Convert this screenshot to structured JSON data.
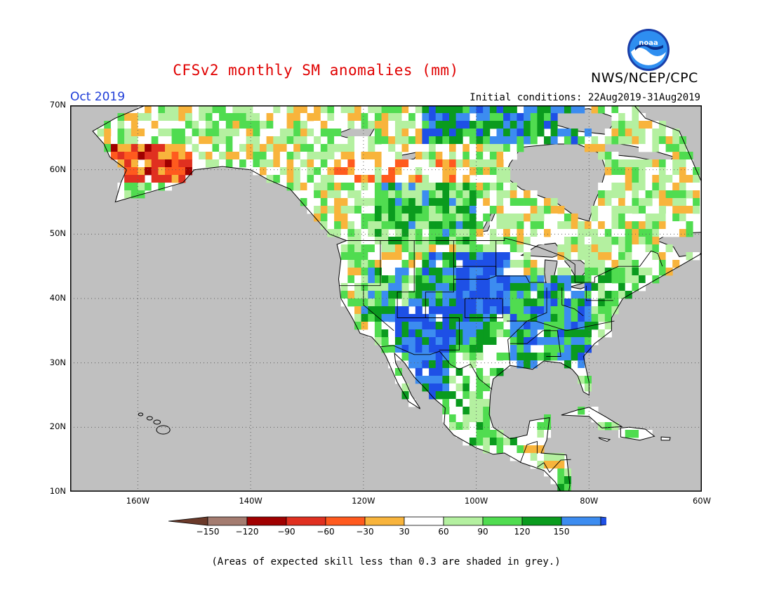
{
  "title": "CFSv2 monthly SM anomalies (mm)",
  "organization": "NWS/NCEP/CPC",
  "logo": {
    "text": "noaa",
    "icon": "noaa-logo-icon"
  },
  "valid_month": "Oct 2019",
  "initial_conditions": "Initial conditions: 22Aug2019-31Aug2019",
  "footnote": "(Areas of expected skill less than 0.3 are shaded in grey.)",
  "map": {
    "lon_range": [
      -172,
      -60
    ],
    "lat_range": [
      10,
      70
    ],
    "lat_labels": [
      "70N",
      "60N",
      "50N",
      "40N",
      "30N",
      "20N",
      "10N"
    ],
    "lon_labels": [
      "160W",
      "140W",
      "120W",
      "100W",
      "80W",
      "60W"
    ],
    "grey_color": "#c0c0c0",
    "grid": "dotted"
  },
  "colorbar": {
    "ticks": [
      "−150",
      "−120",
      "−90",
      "−60",
      "−30",
      "30",
      "60",
      "90",
      "120",
      "150"
    ],
    "colors": [
      "#6b3a2a",
      "#a47c70",
      "#a00000",
      "#e03020",
      "#ff5a1e",
      "#f8b43c",
      "#ffffff",
      "#b4f0a0",
      "#50dc50",
      "#0a9b1e",
      "#3c8cf0",
      "#1e50e6"
    ]
  },
  "anomaly_levels": {
    "brown": "#6b3a2a",
    "lbrown": "#a47c70",
    "dred": "#a00000",
    "red": "#e03020",
    "orange": "#ff5a1e",
    "yellow": "#f8b43c",
    "white": "#ffffff",
    "lgreen": "#b4f0a0",
    "green": "#50dc50",
    "dgreen": "#0a9b1e",
    "lblue": "#3c8cf0",
    "blue": "#1e50e6"
  }
}
